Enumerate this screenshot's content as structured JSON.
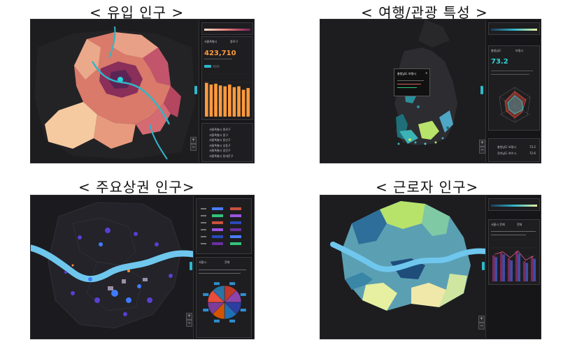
{
  "captions": {
    "inflow": "< 유입 인구 >",
    "tourism": "< 여행/관광 특성 >",
    "commercial": "< 주요상권 인구>",
    "worker": "< 근로자 인구>"
  },
  "inflow": {
    "region_select": "서울특별시",
    "district_select": "종로구",
    "total_value": "423,710",
    "table_rows": [
      "서울특별시 종로구",
      "서울특별시 중구",
      "서울특별시 용산구",
      "서울특별시 성동구",
      "서울특별시 광진구",
      "서울특별시 동대문구"
    ],
    "bar_values": [
      78,
      74,
      76,
      72,
      70,
      74,
      68,
      70,
      62,
      66
    ],
    "accent": "#ff9a3c"
  },
  "tourism": {
    "region_select": "충청남도",
    "district_select": "보령시",
    "score": "73.2",
    "popup_title": "충청남도 보령시",
    "list_items": [
      {
        "name": "충청남도 보령시",
        "value": "73.2"
      },
      {
        "name": "전라남도 여수시",
        "value": "72.6"
      }
    ],
    "accent": "#2fd3d3"
  },
  "commercial": {
    "region_select": "서울시",
    "district_select": "전체",
    "legend_colors": [
      "#4a7dff",
      "#33c37a",
      "#c9513f",
      "#9a55e0",
      "#2a49b8",
      "#6b2fa0"
    ],
    "pie_colors": [
      "#c0392b",
      "#8e44ad",
      "#2c3e9f",
      "#1f6fb5",
      "#d35400",
      "#7d3c98",
      "#e74c3c",
      "#2874a6"
    ],
    "accent": "#4f6bff"
  },
  "worker": {
    "region_select": "서울시 전체",
    "district_select": "전체",
    "series_a": [
      62,
      68,
      55,
      72,
      48,
      60
    ],
    "series_b": [
      58,
      64,
      50,
      66,
      44,
      54
    ],
    "accent": "#b8e36b"
  }
}
